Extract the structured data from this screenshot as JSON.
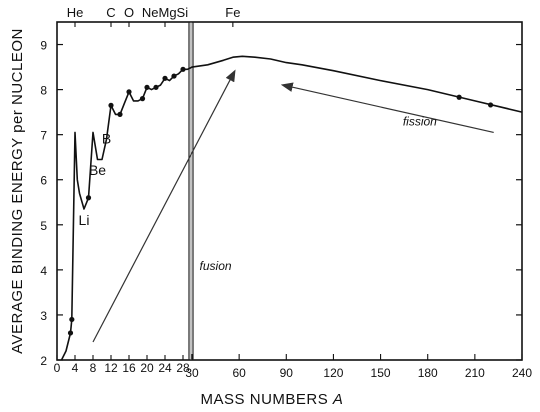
{
  "chart_data": {
    "type": "line",
    "xlabel_parts": [
      "MASS",
      "NUMBERS",
      "A"
    ],
    "ylabel": "AVERAGE BINDING ENERGY per NUCLEON",
    "ylim": [
      2,
      9.5
    ],
    "yticks": [
      "2",
      "3",
      "4",
      "5",
      "6",
      "7",
      "8",
      "9"
    ],
    "xticks_low": [
      "0",
      "4",
      "8",
      "12",
      "16",
      "20",
      "24",
      "28"
    ],
    "xticks_high": [
      "30",
      "60",
      "90",
      "120",
      "150",
      "180",
      "210",
      "240"
    ],
    "x_break": 30,
    "element_labels": [
      {
        "text": "He",
        "a": 4
      },
      {
        "text": "C",
        "a": 12
      },
      {
        "text": "O",
        "a": 16
      },
      {
        "text": "NeMgSi",
        "a": 24
      },
      {
        "text": "Fe",
        "a": 56
      }
    ],
    "curve_labels": [
      {
        "text": "Li",
        "a": 6,
        "e": 5.0
      },
      {
        "text": "Be",
        "a": 9,
        "e": 6.1
      },
      {
        "text": "B",
        "a": 11,
        "e": 6.8
      }
    ],
    "annotations": [
      {
        "text": "fusion",
        "a": 45,
        "e": 4.0
      },
      {
        "text": "fission",
        "a": 175,
        "e": 7.2
      }
    ],
    "arrows": [
      {
        "from": [
          8,
          2.4
        ],
        "to": [
          57,
          8.4
        ]
      },
      {
        "from": [
          222,
          7.05
        ],
        "to": [
          88,
          8.1
        ]
      }
    ],
    "series": [
      {
        "points": [
          [
            1,
            2.0
          ],
          [
            2,
            2.2
          ],
          [
            3,
            2.6
          ],
          [
            3.3,
            2.9
          ],
          [
            4,
            7.05
          ],
          [
            4.5,
            6.0
          ],
          [
            5,
            5.7
          ],
          [
            6,
            5.35
          ],
          [
            7,
            5.6
          ],
          [
            8,
            7.05
          ],
          [
            9,
            6.45
          ],
          [
            10,
            6.45
          ],
          [
            11,
            6.9
          ],
          [
            12,
            7.65
          ],
          [
            13,
            7.45
          ],
          [
            14,
            7.45
          ],
          [
            15,
            7.7
          ],
          [
            16,
            7.95
          ],
          [
            17,
            7.75
          ],
          [
            18,
            7.75
          ],
          [
            19,
            7.8
          ],
          [
            20,
            8.05
          ],
          [
            21,
            8.0
          ],
          [
            22,
            8.05
          ],
          [
            23,
            8.1
          ],
          [
            24,
            8.25
          ],
          [
            25,
            8.2
          ],
          [
            26,
            8.3
          ],
          [
            27,
            8.35
          ],
          [
            28,
            8.45
          ],
          [
            29,
            8.45
          ],
          [
            30,
            8.5
          ],
          [
            40,
            8.55
          ],
          [
            50,
            8.65
          ],
          [
            56,
            8.72
          ],
          [
            62,
            8.74
          ],
          [
            70,
            8.72
          ],
          [
            80,
            8.68
          ],
          [
            90,
            8.6
          ],
          [
            100,
            8.55
          ],
          [
            120,
            8.42
          ],
          [
            150,
            8.2
          ],
          [
            180,
            8.0
          ],
          [
            210,
            7.75
          ],
          [
            240,
            7.5
          ]
        ]
      }
    ],
    "marked_points": [
      [
        3.3,
        2.9
      ],
      [
        3,
        2.6
      ],
      [
        7,
        5.6
      ],
      [
        12,
        7.65
      ],
      [
        14,
        7.45
      ],
      [
        16,
        7.95
      ],
      [
        19,
        7.8
      ],
      [
        20,
        8.05
      ],
      [
        22,
        8.05
      ],
      [
        24,
        8.25
      ],
      [
        26,
        8.3
      ],
      [
        28,
        8.45
      ],
      [
        200,
        7.83
      ],
      [
        220,
        7.66
      ]
    ]
  }
}
